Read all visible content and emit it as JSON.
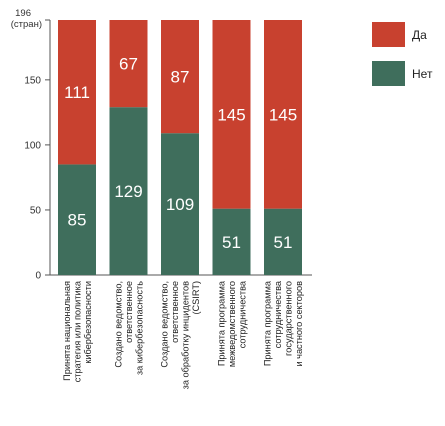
{
  "chart_data": {
    "type": "bar",
    "stacked": true,
    "y_axis_title_lines": [
      "196",
      "(стран)"
    ],
    "ylim": [
      0,
      196
    ],
    "yticks": [
      0,
      50,
      100,
      150
    ],
    "grid": false,
    "legend_position": "right",
    "categories": [
      [
        "Принята национальная",
        "стратегия или политика",
        "кибербезопасности"
      ],
      [
        "Создано ведомство,",
        "ответственное",
        "за кибербезопасность"
      ],
      [
        "Создано ведомство,",
        "ответственное",
        "за обработку инцидентов",
        "(CSIRT)"
      ],
      [
        "Принята программа",
        "межведомственного",
        "сотрудничества"
      ],
      [
        "Принята программа",
        "сотрудничества",
        "государственного",
        "и частного секторов"
      ]
    ],
    "series": [
      {
        "name": "Нет",
        "color": "#3f6e5c",
        "values": [
          85,
          129,
          109,
          51,
          51
        ]
      },
      {
        "name": "Да",
        "color": "#c8412f",
        "values": [
          111,
          67,
          87,
          145,
          145
        ]
      }
    ],
    "legend": [
      {
        "label": "Да",
        "color": "#c8412f"
      },
      {
        "label": "Нет",
        "color": "#3f6e5c"
      }
    ]
  }
}
